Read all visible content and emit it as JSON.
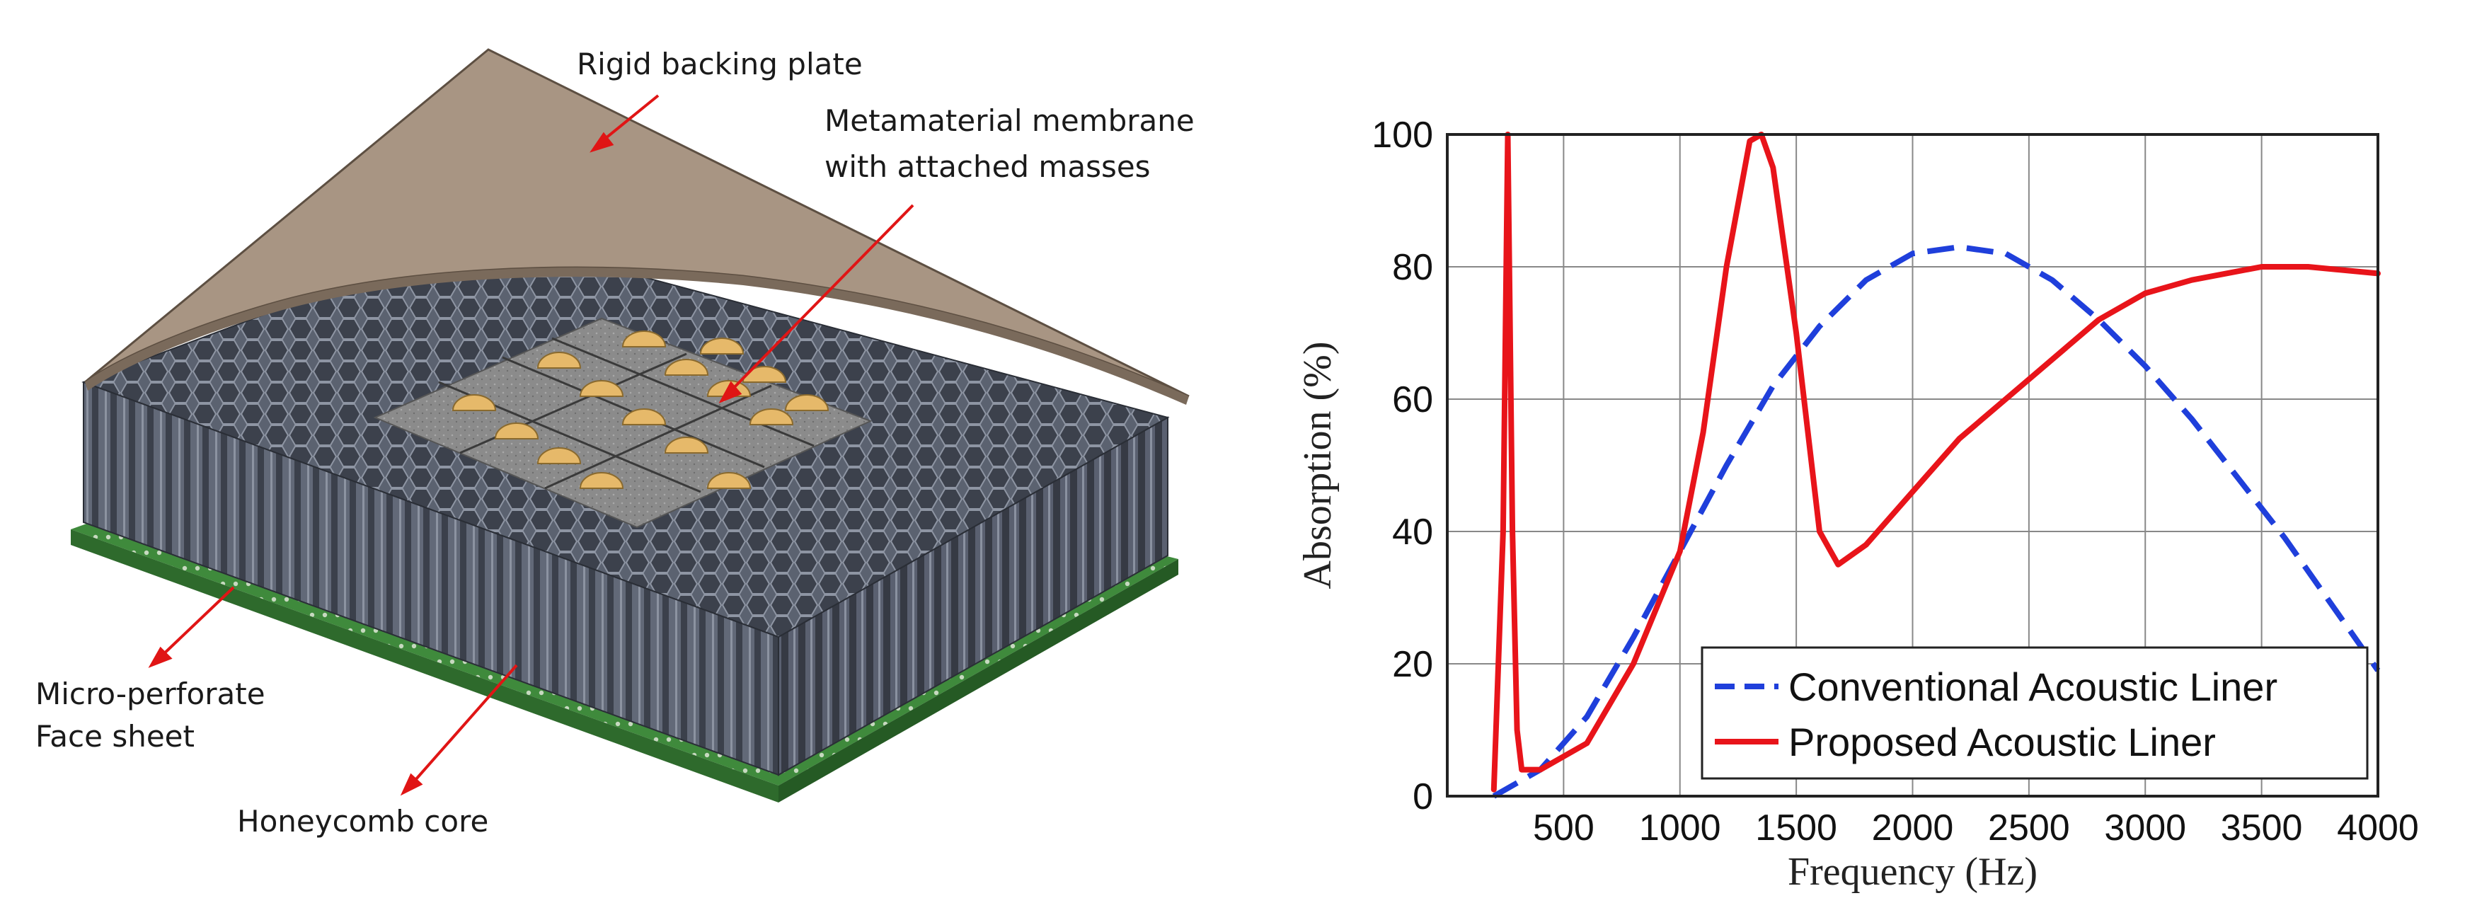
{
  "diagram": {
    "labels": {
      "backing_plate": "Rigid backing plate",
      "membrane_line1": "Metamaterial membrane",
      "membrane_line2": "with attached masses",
      "face_sheet_line1": "Micro-perforate",
      "face_sheet_line2": "Face sheet",
      "honeycomb": "Honeycomb core"
    },
    "colors": {
      "backing_plate": "#a89583",
      "honeycomb": "#4e5461",
      "face_sheet": "#3f8a3c",
      "membrane": "#8a8a8a",
      "mass": "#e6b96a",
      "arrow": "#e01515"
    }
  },
  "chart_data": {
    "type": "line",
    "title": "",
    "xlabel": "Frequency (Hz)",
    "ylabel": "Absorption (%)",
    "xlim": [
      0,
      4000
    ],
    "ylim": [
      0,
      100
    ],
    "x_ticks": [
      500,
      1000,
      1500,
      2000,
      2500,
      3000,
      3500,
      4000
    ],
    "y_ticks": [
      0,
      20,
      40,
      60,
      80,
      100
    ],
    "grid": true,
    "legend_position": "bottom-right",
    "series": [
      {
        "name": "Conventional Acoustic Liner",
        "color": "#1f3fdb",
        "style": "dashed",
        "x": [
          200,
          400,
          600,
          800,
          1000,
          1200,
          1400,
          1600,
          1800,
          2000,
          2200,
          2400,
          2600,
          2800,
          3000,
          3200,
          3400,
          3600,
          3800,
          4000
        ],
        "y": [
          0,
          4,
          12,
          24,
          37,
          50,
          62,
          71,
          78,
          82,
          83,
          82,
          78,
          72,
          65,
          57,
          48,
          39,
          29,
          19
        ]
      },
      {
        "name": "Proposed Acoustic Liner",
        "color": "#e8141a",
        "style": "solid",
        "x": [
          200,
          240,
          260,
          280,
          300,
          320,
          400,
          600,
          800,
          1000,
          1100,
          1200,
          1300,
          1350,
          1400,
          1500,
          1600,
          1680,
          1800,
          2000,
          2200,
          2500,
          2800,
          3000,
          3200,
          3500,
          3700,
          4000
        ],
        "y": [
          1,
          40,
          100,
          40,
          10,
          4,
          4,
          8,
          20,
          37,
          55,
          80,
          99,
          100,
          95,
          70,
          40,
          35,
          38,
          46,
          54,
          63,
          72,
          76,
          78,
          80,
          80,
          79
        ]
      }
    ]
  }
}
